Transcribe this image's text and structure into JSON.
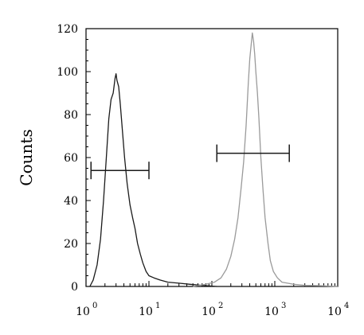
{
  "chart_data": {
    "type": "line",
    "title": "",
    "xlabel": "",
    "ylabel": "Counts",
    "x_scale": "log",
    "xlim": [
      1,
      10000
    ],
    "ylim": [
      0,
      120
    ],
    "y_ticks": [
      "0",
      "20",
      "40",
      "60",
      "80",
      "100",
      "120"
    ],
    "x_ticks": [
      {
        "base": "10",
        "exp": "0"
      },
      {
        "base": "10",
        "exp": "1"
      },
      {
        "base": "10",
        "exp": "2"
      },
      {
        "base": "10",
        "exp": "3"
      },
      {
        "base": "10",
        "exp": "4"
      }
    ],
    "grid": false,
    "series": [
      {
        "color": "#1a1a1a",
        "x": [
          1.15,
          1.3,
          1.5,
          1.7,
          1.9,
          2.1,
          2.3,
          2.5,
          2.7,
          2.9,
          3.0,
          3.1,
          3.3,
          3.5,
          3.8,
          4.1,
          4.5,
          5.0,
          5.5,
          6.0,
          6.6,
          7.3,
          8.0,
          9.0,
          10,
          12,
          15,
          20,
          30,
          45,
          70,
          120
        ],
        "y": [
          0,
          3,
          10,
          22,
          40,
          60,
          78,
          87,
          90,
          97,
          99,
          96,
          93,
          85,
          72,
          60,
          48,
          38,
          32,
          27,
          20,
          15,
          11,
          7,
          5,
          4,
          3,
          2,
          1.5,
          1,
          0.5,
          0
        ]
      },
      {
        "color": "#9a9a9a",
        "x": [
          50,
          80,
          110,
          140,
          170,
          200,
          230,
          260,
          290,
          320,
          350,
          380,
          400,
          420,
          440,
          460,
          480,
          500,
          530,
          560,
          600,
          650,
          700,
          780,
          850,
          950,
          1100,
          1300,
          1600,
          2000,
          3000,
          6000,
          10000
        ],
        "y": [
          0,
          1,
          2,
          4,
          8,
          14,
          22,
          32,
          45,
          58,
          75,
          95,
          106,
          112,
          118,
          114,
          108,
          100,
          90,
          78,
          60,
          45,
          32,
          20,
          12,
          7,
          4,
          2,
          1.5,
          1,
          0.5,
          0.3,
          0
        ]
      }
    ],
    "gates": [
      {
        "x_start": 1.2,
        "x_end": 10,
        "y": 54,
        "color": "#1a1a1a"
      },
      {
        "x_start": 120,
        "x_end": 1700,
        "y": 62,
        "color": "#1a1a1a"
      }
    ]
  }
}
